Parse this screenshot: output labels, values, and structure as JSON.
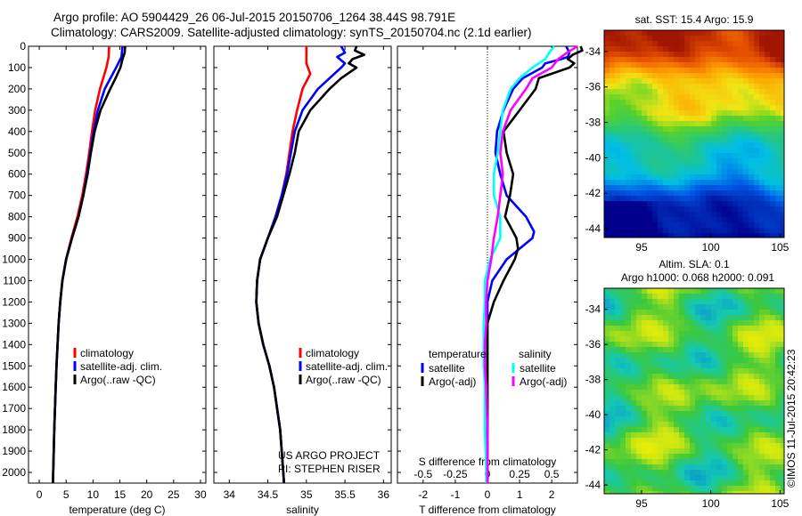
{
  "header": {
    "title_line1": "Argo profile: AO 5904429_26 06-Jul-2015 20150706_1264 38.44S 98.791E",
    "title_line2": "Climatology: CARS2009. Satellite-adjusted climatology: synTS_20150704.nc (2.1d earlier)"
  },
  "colors": {
    "climatology": "#ff0000",
    "satellite": "#0000ff",
    "argo": "#000000",
    "satellite_salinity": "#00ffff",
    "argo_salinity": "#ff00ff"
  },
  "chart_data": [
    {
      "type": "line",
      "id": "temperature",
      "xlabel": "temperature (deg C)",
      "ylabel": "",
      "xlim": [
        -2,
        31
      ],
      "ylim": [
        2050,
        0
      ],
      "xticks": [
        0,
        5,
        10,
        15,
        20,
        25,
        30
      ],
      "yticks": [
        0,
        100,
        200,
        300,
        400,
        500,
        600,
        700,
        800,
        900,
        1000,
        1100,
        1200,
        1300,
        1400,
        1500,
        1600,
        1700,
        1800,
        1900,
        2000
      ],
      "legend": [
        "climatology",
        "satellite-adj. clim.",
        "Argo(..raw -QC)"
      ],
      "series": [
        {
          "name": "climatology",
          "color": "#ff0000",
          "depth": [
            0,
            50,
            100,
            200,
            300,
            400,
            500,
            600,
            700,
            800,
            900,
            1000,
            1100,
            1200,
            1300,
            1400,
            1500,
            1600,
            1800,
            2000,
            2050
          ],
          "values": [
            13.0,
            12.9,
            12.5,
            11.3,
            10.4,
            9.8,
            9.3,
            8.7,
            8.0,
            7.1,
            6.0,
            5.0,
            4.3,
            3.9,
            3.6,
            3.4,
            3.2,
            3.05,
            2.8,
            2.6,
            2.55
          ]
        },
        {
          "name": "satellite-adj. clim.",
          "color": "#0000ff",
          "depth": [
            0,
            50,
            100,
            200,
            300,
            400,
            500,
            600,
            700,
            800,
            900,
            1000,
            1100,
            1200,
            1300,
            1400,
            1500,
            1600,
            1800,
            2000,
            2050
          ],
          "values": [
            15.5,
            15.3,
            14.3,
            12.2,
            10.9,
            10.1,
            9.5,
            8.9,
            8.2,
            7.3,
            6.1,
            5.0,
            4.3,
            3.9,
            3.6,
            3.4,
            3.2,
            3.05,
            2.8,
            2.6,
            2.55
          ]
        },
        {
          "name": "Argo(..raw -QC)",
          "color": "#000000",
          "depth": [
            0,
            30,
            60,
            100,
            150,
            200,
            300,
            400,
            500,
            600,
            700,
            800,
            900,
            1000,
            1100,
            1200,
            1300,
            1400,
            1500,
            1600,
            1800,
            2000,
            2050
          ],
          "values": [
            16.0,
            15.9,
            15.5,
            15.1,
            14.2,
            13.2,
            11.4,
            10.3,
            9.6,
            9.0,
            8.2,
            7.3,
            6.1,
            5.0,
            4.3,
            3.9,
            3.6,
            3.4,
            3.2,
            3.05,
            2.8,
            2.6,
            2.55
          ]
        }
      ]
    },
    {
      "type": "line",
      "id": "salinity",
      "xlabel": "salinity",
      "ylabel": "",
      "xlim": [
        33.8,
        36.1
      ],
      "ylim": [
        2050,
        0
      ],
      "xticks": [
        34,
        34.5,
        35,
        35.5,
        36
      ],
      "legend": [
        "climatology",
        "satellite-adj. clim.",
        "Argo(..raw -QC)"
      ],
      "annotation": [
        "US ARGO PROJECT",
        "PI: STEPHEN RISER"
      ],
      "series": [
        {
          "name": "climatology",
          "color": "#ff0000",
          "depth": [
            0,
            50,
            80,
            100,
            130,
            200,
            300,
            400,
            500,
            600,
            700,
            800,
            900,
            1000,
            1100,
            1200,
            1300,
            1400,
            1500,
            1600,
            1800,
            2000,
            2050
          ],
          "values": [
            35.0,
            35.0,
            35.0,
            35.02,
            35.05,
            34.95,
            34.88,
            34.82,
            34.78,
            34.74,
            34.68,
            34.6,
            34.5,
            34.4,
            34.36,
            34.35,
            34.38,
            34.44,
            34.52,
            34.58,
            34.66,
            34.7,
            34.71
          ]
        },
        {
          "name": "satellite-adj. clim.",
          "color": "#0000ff",
          "depth": [
            0,
            30,
            50,
            80,
            100,
            150,
            200,
            300,
            400,
            500,
            600,
            700,
            800,
            900,
            1000,
            1100,
            1200,
            1300,
            1400,
            1500,
            1600,
            1800,
            2000,
            2050
          ],
          "values": [
            35.45,
            35.5,
            35.4,
            35.5,
            35.45,
            35.3,
            35.15,
            34.95,
            34.85,
            34.8,
            34.75,
            34.68,
            34.6,
            34.5,
            34.4,
            34.36,
            34.35,
            34.38,
            34.44,
            34.52,
            34.58,
            34.66,
            34.7,
            34.71
          ]
        },
        {
          "name": "Argo(..raw -QC)",
          "color": "#000000",
          "depth": [
            0,
            20,
            40,
            60,
            80,
            100,
            150,
            200,
            300,
            400,
            500,
            600,
            700,
            800,
            900,
            1000,
            1100,
            1200,
            1300,
            1400,
            1500,
            1600,
            1800,
            2000,
            2050
          ],
          "values": [
            35.65,
            35.63,
            35.75,
            35.6,
            35.55,
            35.65,
            35.45,
            35.3,
            35.05,
            34.9,
            34.85,
            34.78,
            34.7,
            34.62,
            34.5,
            34.4,
            34.36,
            34.35,
            34.38,
            34.44,
            34.52,
            34.58,
            34.66,
            34.7,
            34.71
          ]
        }
      ]
    },
    {
      "type": "line",
      "id": "differences",
      "xlabel": "T difference from climatology",
      "xlabel2": "S difference from climatology",
      "xlim": [
        -2.8,
        2.8
      ],
      "ylim": [
        2050,
        0
      ],
      "xticks": [
        -2,
        -1,
        0,
        1,
        2
      ],
      "xticklabels": [
        "-2",
        "-1",
        "0",
        "1",
        "2"
      ],
      "sxticks": [
        -0.5,
        -0.25,
        0,
        0.25,
        0.5
      ],
      "sxticklabels": [
        "-0.5",
        "-0.25",
        "0",
        "0.25",
        "0.5"
      ],
      "legend_headers": [
        "temperature",
        "salinity"
      ],
      "legend": [
        "satellite",
        "Argo(-adj)",
        "satellite",
        "Argo(-adj)"
      ],
      "series": [
        {
          "name": "satellite",
          "group": "temperature",
          "color": "#0000ff",
          "depth": [
            0,
            30,
            50,
            60,
            80,
            100,
            150,
            200,
            300,
            400,
            500,
            600,
            700,
            800,
            870,
            900,
            950,
            1000,
            1100,
            1200,
            1300,
            1400,
            1500,
            1600,
            1800,
            2000,
            2050
          ],
          "values": [
            2.45,
            2.55,
            2.5,
            2.3,
            1.8,
            1.7,
            1.1,
            0.8,
            0.5,
            0.3,
            0.25,
            0.4,
            0.6,
            1.2,
            1.45,
            1.4,
            1.0,
            0.6,
            0.15,
            0.0,
            0.0,
            0.0,
            0.0,
            0.0,
            0.0,
            0.0,
            0.0
          ]
        },
        {
          "name": "Argo(-adj)",
          "group": "temperature",
          "color": "#000000",
          "depth": [
            0,
            20,
            40,
            60,
            80,
            100,
            150,
            200,
            300,
            400,
            500,
            600,
            700,
            800,
            900,
            950,
            1000,
            1100,
            1200,
            1300,
            1400,
            1500,
            1600,
            1800,
            2000,
            2050
          ],
          "values": [
            2.9,
            2.95,
            2.65,
            2.5,
            2.7,
            2.55,
            1.6,
            1.5,
            1.0,
            0.5,
            0.6,
            0.8,
            0.7,
            0.55,
            0.9,
            0.95,
            0.85,
            0.5,
            0.2,
            0.0,
            0.0,
            0.0,
            0.0,
            0.0,
            0.0,
            0.0
          ]
        },
        {
          "name": "satellite",
          "group": "salinity",
          "color": "#00ffff",
          "depth": [
            0,
            30,
            60,
            100,
            150,
            200,
            300,
            400,
            500,
            600,
            700,
            800,
            900,
            1000,
            1100,
            1200,
            1300,
            1400,
            1500,
            1600,
            1800,
            2000,
            2050
          ],
          "values": [
            0.52,
            0.48,
            0.45,
            0.35,
            0.25,
            0.18,
            0.12,
            0.1,
            0.08,
            0.05,
            0.05,
            0.1,
            0.1,
            0.02,
            -0.02,
            -0.02,
            -0.03,
            -0.03,
            -0.03,
            -0.02,
            -0.02,
            -0.01,
            -0.01
          ]
        },
        {
          "name": "Argo(-adj)",
          "group": "salinity",
          "color": "#ff00ff",
          "depth": [
            0,
            30,
            60,
            100,
            150,
            200,
            300,
            400,
            500,
            600,
            700,
            800,
            900,
            1000,
            1100,
            1200,
            1300,
            1400,
            1500,
            1600,
            1800,
            2000,
            2050
          ],
          "values": [
            0.7,
            0.62,
            0.55,
            0.5,
            0.35,
            0.3,
            0.18,
            0.12,
            0.1,
            0.12,
            0.1,
            0.08,
            0.05,
            0.03,
            0.0,
            -0.01,
            -0.01,
            -0.02,
            -0.02,
            -0.01,
            0.0,
            0.0,
            0.0
          ]
        }
      ]
    },
    {
      "type": "heatmap",
      "id": "sst_map",
      "title": "sat. SST: 15.4 Argo: 15.9",
      "xlim": [
        92.3,
        105.3
      ],
      "ylim": [
        -44.5,
        -32.8
      ],
      "xticks": [
        95,
        100,
        105
      ],
      "yticks": [
        -34,
        -36,
        -38,
        -40,
        -42,
        -44
      ]
    },
    {
      "type": "heatmap",
      "id": "sla_map",
      "title": "Altim. SLA: 0.1",
      "subtitle": "Argo h1000: 0.068 h2000: 0.091",
      "xlim": [
        92.3,
        105.3
      ],
      "ylim": [
        -44.5,
        -32.8
      ],
      "xticks": [
        95,
        100,
        105
      ],
      "yticks": [
        -34,
        -36,
        -38,
        -40,
        -42,
        -44
      ],
      "credit": "©IMOS 11-Jul-2015 20:42:23"
    }
  ]
}
